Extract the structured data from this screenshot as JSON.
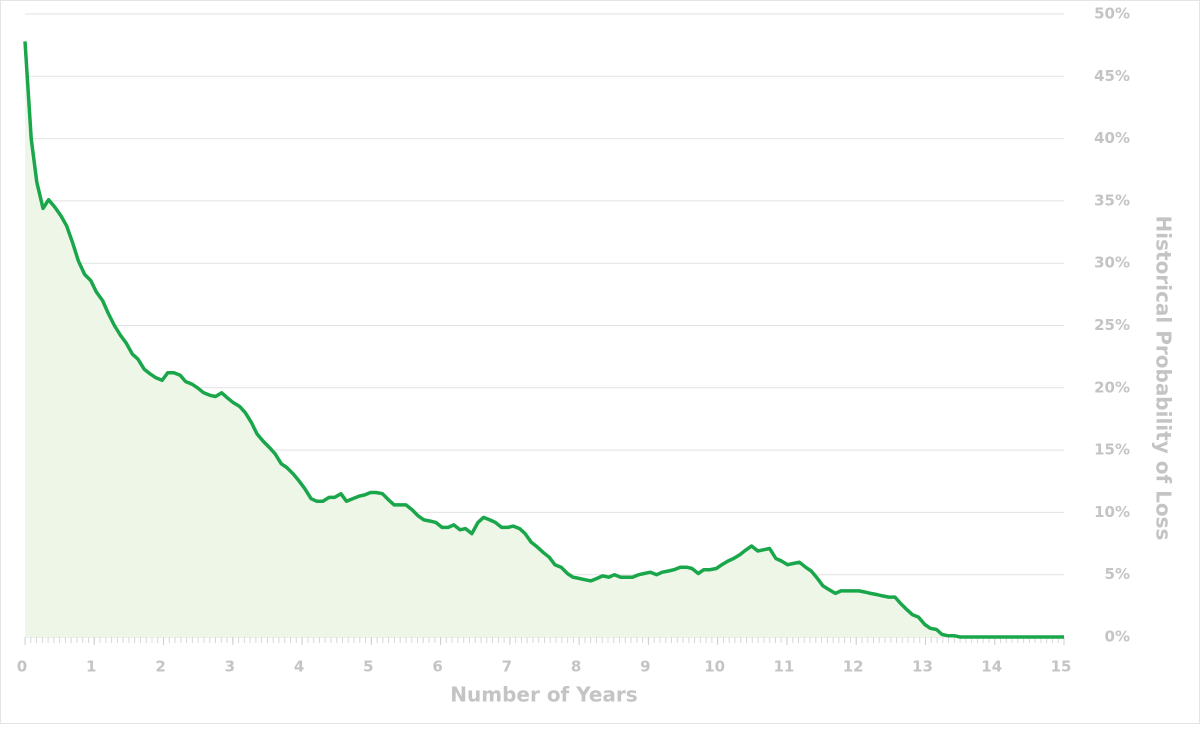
{
  "chart_data": {
    "type": "area",
    "xlabel": "Number of Years",
    "ylabel": "Historical Probability of Loss",
    "x": [
      0,
      0.09,
      0.17,
      0.26,
      0.34,
      0.43,
      0.52,
      0.6,
      0.69,
      0.77,
      0.86,
      0.95,
      1.03,
      1.12,
      1.2,
      1.29,
      1.38,
      1.46,
      1.55,
      1.63,
      1.72,
      1.81,
      1.89,
      1.98,
      2.06,
      2.15,
      2.24,
      2.32,
      2.41,
      2.49,
      2.58,
      2.67,
      2.75,
      2.84,
      2.92,
      3.01,
      3.1,
      3.18,
      3.27,
      3.35,
      3.44,
      3.53,
      3.61,
      3.7,
      3.78,
      3.87,
      3.96,
      4.04,
      4.13,
      4.21,
      4.3,
      4.39,
      4.47,
      4.56,
      4.64,
      4.73,
      4.82,
      4.9,
      4.99,
      5.07,
      5.16,
      5.25,
      5.33,
      5.42,
      5.5,
      5.59,
      5.68,
      5.76,
      5.85,
      5.93,
      6.02,
      6.11,
      6.19,
      6.28,
      6.36,
      6.45,
      6.54,
      6.62,
      6.71,
      6.79,
      6.88,
      6.97,
      7.05,
      7.14,
      7.22,
      7.31,
      7.4,
      7.48,
      7.57,
      7.65,
      7.74,
      7.83,
      7.91,
      8.0,
      8.08,
      8.17,
      8.26,
      8.34,
      8.43,
      8.51,
      8.6,
      8.69,
      8.77,
      8.86,
      8.94,
      9.03,
      9.12,
      9.2,
      9.29,
      9.37,
      9.46,
      9.55,
      9.63,
      9.72,
      9.8,
      9.89,
      9.98,
      10.06,
      10.15,
      10.23,
      10.32,
      10.41,
      10.49,
      10.58,
      10.66,
      10.75,
      10.84,
      10.92,
      11.01,
      11.09,
      11.18,
      11.27,
      11.35,
      11.44,
      11.52,
      11.61,
      11.7,
      11.78,
      11.87,
      11.95,
      12.04,
      12.13,
      12.21,
      12.3,
      12.38,
      12.47,
      12.56,
      12.64,
      12.73,
      12.81,
      12.9,
      12.99,
      13.07,
      13.16,
      13.24,
      13.33,
      13.42,
      13.5,
      15
    ],
    "series": [
      {
        "color": "#1aa64a",
        "fill": "#eef6e8",
        "values": [
          47.8,
          40,
          36.5,
          34.4,
          35.1,
          34.5,
          33.8,
          33,
          31.6,
          30.2,
          29.1,
          28.6,
          27.7,
          27,
          26,
          25,
          24.2,
          23.6,
          22.7,
          22.3,
          21.5,
          21.1,
          20.8,
          20.6,
          21.2,
          21.2,
          21,
          20.5,
          20.3,
          20,
          19.6,
          19.4,
          19.3,
          19.6,
          19.2,
          18.8,
          18.5,
          18,
          17.2,
          16.3,
          15.7,
          15.2,
          14.7,
          13.9,
          13.6,
          13.1,
          12.5,
          11.9,
          11.1,
          10.9,
          10.9,
          11.2,
          11.2,
          11.5,
          10.9,
          11.1,
          11.3,
          11.4,
          11.6,
          11.6,
          11.5,
          11,
          10.6,
          10.6,
          10.6,
          10.2,
          9.7,
          9.4,
          9.3,
          9.2,
          8.8,
          8.8,
          9,
          8.6,
          8.7,
          8.3,
          9.2,
          9.6,
          9.4,
          9.2,
          8.8,
          8.8,
          8.9,
          8.7,
          8.3,
          7.6,
          7.2,
          6.8,
          6.4,
          5.8,
          5.6,
          5.1,
          4.8,
          4.7,
          4.6,
          4.5,
          4.7,
          4.9,
          4.8,
          5,
          4.8,
          4.8,
          4.8,
          5,
          5.1,
          5.2,
          5,
          5.2,
          5.3,
          5.4,
          5.6,
          5.6,
          5.5,
          5.1,
          5.4,
          5.4,
          5.5,
          5.8,
          6.1,
          6.3,
          6.6,
          7,
          7.3,
          6.9,
          7,
          7.1,
          6.3,
          6.1,
          5.8,
          5.9,
          6,
          5.6,
          5.3,
          4.7,
          4.1,
          3.8,
          3.5,
          3.7,
          3.7,
          3.7,
          3.7,
          3.6,
          3.5,
          3.4,
          3.3,
          3.2,
          3.2,
          2.7,
          2.2,
          1.8,
          1.6,
          1.0,
          0.7,
          0.6,
          0.2,
          0.1,
          0.1,
          0,
          0
        ]
      }
    ],
    "xlim": [
      0,
      15
    ],
    "xticks": [
      0,
      1,
      2,
      3,
      4,
      5,
      6,
      7,
      8,
      9,
      10,
      11,
      12,
      13,
      14,
      15
    ],
    "ylim": [
      0,
      50
    ],
    "yticks": [
      {
        "value": 0,
        "label": "0%"
      },
      {
        "value": 5,
        "label": "5%"
      },
      {
        "value": 10,
        "label": "10%"
      },
      {
        "value": 15,
        "label": "15%"
      },
      {
        "value": 20,
        "label": "20%"
      },
      {
        "value": 25,
        "label": "25%"
      },
      {
        "value": 30,
        "label": "30%"
      },
      {
        "value": 35,
        "label": "35%"
      },
      {
        "value": 40,
        "label": "40%"
      },
      {
        "value": 45,
        "label": "45%"
      },
      {
        "value": 50,
        "label": "50%"
      }
    ],
    "y_axis_side": "right",
    "grid": true
  }
}
